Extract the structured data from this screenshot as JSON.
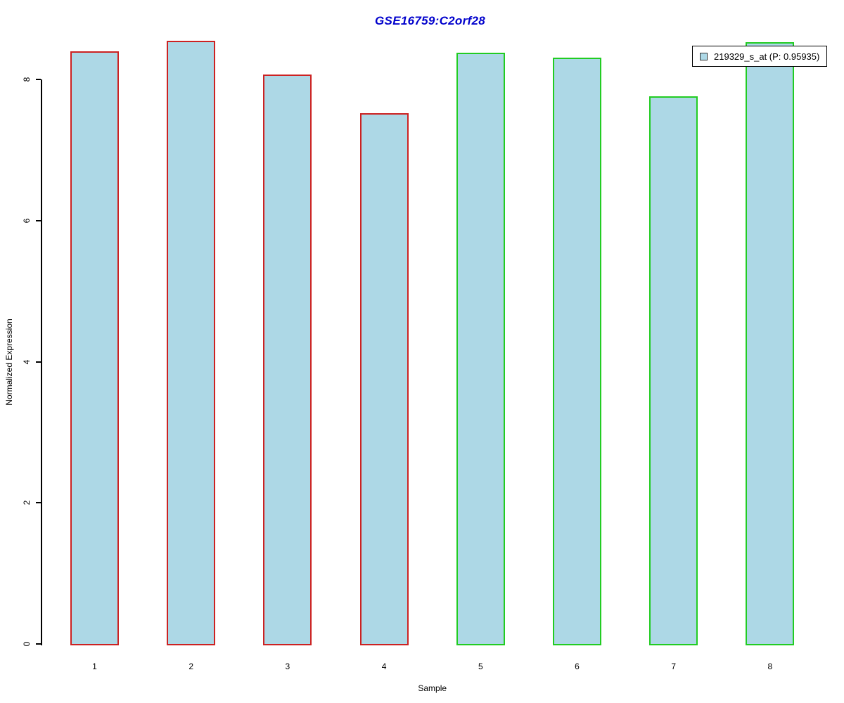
{
  "chart_data": {
    "type": "bar",
    "title": "GSE16759:C2orf28",
    "title_color": "#0000CC",
    "xlabel": "Sample",
    "ylabel": "Normalized Expression",
    "categories": [
      "1",
      "2",
      "3",
      "4",
      "5",
      "6",
      "7",
      "8"
    ],
    "values": [
      8.4,
      8.55,
      8.07,
      7.52,
      8.38,
      8.31,
      7.76,
      8.53
    ],
    "bar_fill": "#ADD8E6",
    "bar_border_colors": [
      "#CC2222",
      "#CC2222",
      "#CC2222",
      "#CC2222",
      "#22CC22",
      "#22CC22",
      "#22CC22",
      "#22CC22"
    ],
    "yticks": [
      0,
      2,
      4,
      6,
      8
    ],
    "ylim": [
      0,
      8.72
    ],
    "grid": false,
    "legend": {
      "position": "top-right",
      "label": "219329_s_at (P: 0.95935)",
      "swatch_fill": "#ADD8E6",
      "swatch_border": "#333333"
    }
  }
}
